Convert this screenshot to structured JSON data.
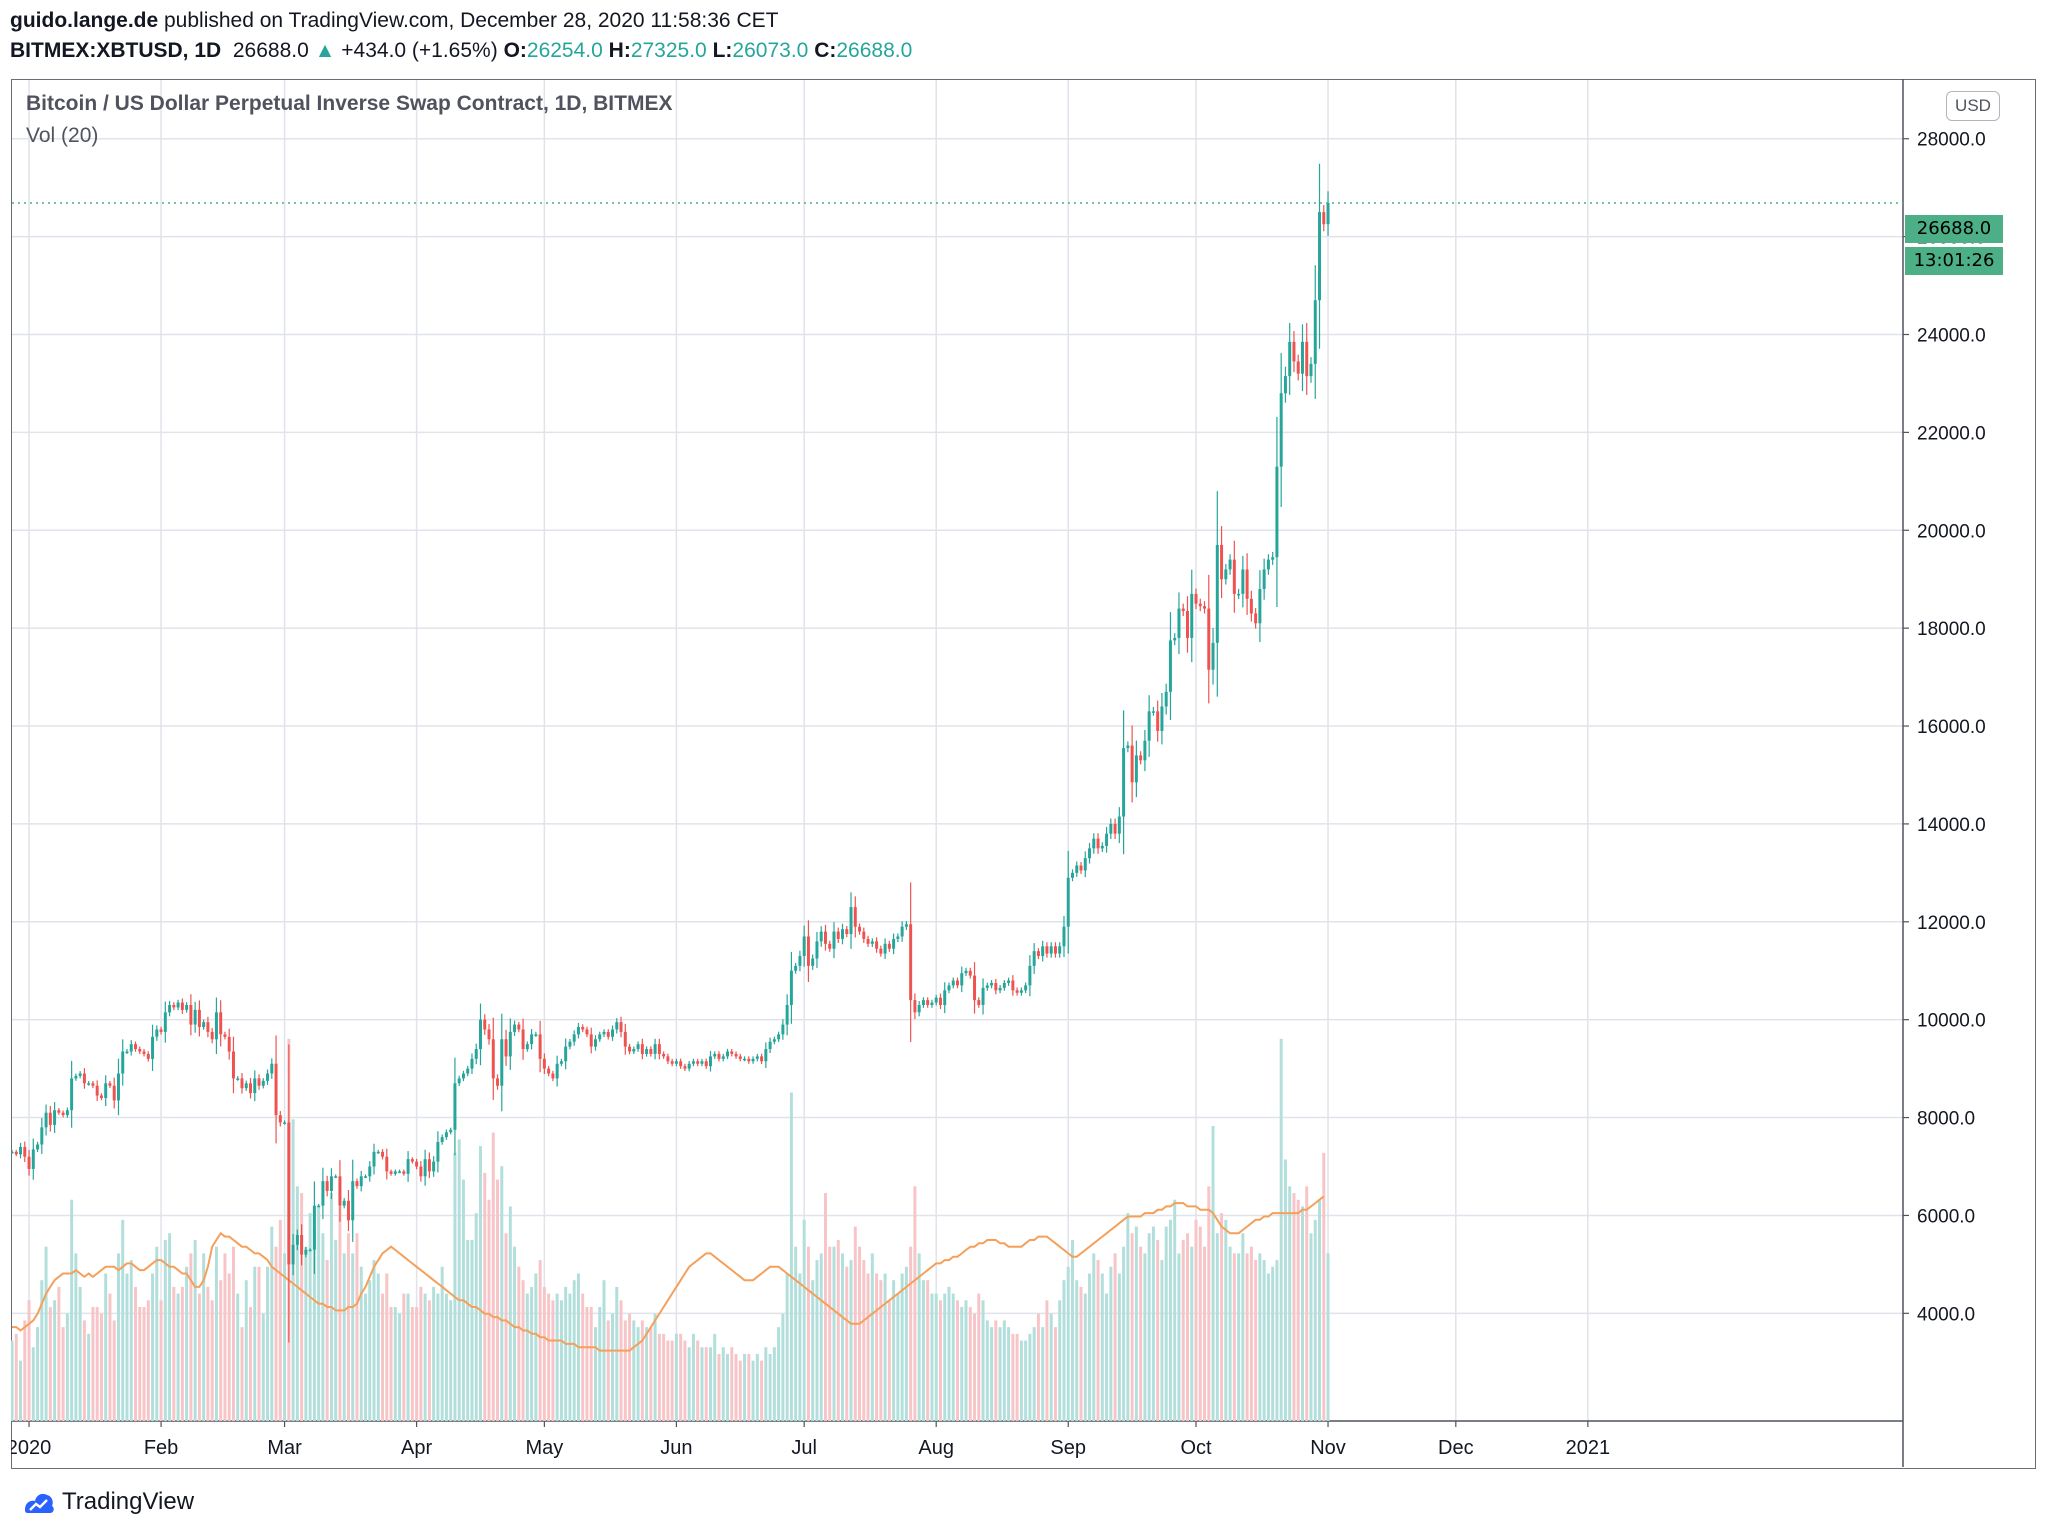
{
  "header": {
    "author": "guido.lange.de",
    "published": " published on TradingView.com, December 28, 2020 11:58:36 CET",
    "symbol": "BITMEX:XBTUSD, 1D",
    "last": "26688.0",
    "arrow": "▲",
    "change": "+434.0 (+1.65%)",
    "o_label": "O:",
    "o": "26254.0",
    "h_label": "H:",
    "h": "27325.0",
    "l_label": "L:",
    "l": "26073.0",
    "c_label": "C:",
    "c": "26688.0"
  },
  "pane": {
    "title": "Bitcoin / US Dollar Perpetual Inverse Swap Contract, 1D, BITMEX",
    "vol_title": "Vol (20)",
    "currency": "USD",
    "price_badge": "26688.0",
    "timer_badge": "13:01:26"
  },
  "footer": {
    "brand": "TradingView"
  },
  "colors": {
    "up": "#26a69a",
    "down": "#ef5350",
    "up_vol": "#b2dfdb",
    "down_vol": "#f7c5c7",
    "vol_ma": "#f5a05a",
    "grid": "#e0e3eb",
    "badge": "#4caf85"
  },
  "chart_data": {
    "type": "candlestick",
    "title": "Bitcoin / US Dollar Perpetual Inverse Swap Contract, 1D, BITMEX",
    "ylim": [
      1800,
      29200
    ],
    "y_ticks": [
      4000,
      6000,
      8000,
      10000,
      12000,
      14000,
      16000,
      18000,
      20000,
      22000,
      24000,
      26000,
      28000
    ],
    "y_tick_labels": [
      "4000.0",
      "6000.0",
      "8000.0",
      "10000.0",
      "12000.0",
      "14000.0",
      "16000.0",
      "18000.0",
      "20000.0",
      "22000.0",
      "24000.0",
      "26000.0",
      "28000.0"
    ],
    "x_range": [
      "2019-12-28",
      "2021-03-16"
    ],
    "x_ticks": [
      {
        "date": "2020-01-01",
        "label": "2020"
      },
      {
        "date": "2020-02-01",
        "label": "Feb"
      },
      {
        "date": "2020-03-01",
        "label": "Mar"
      },
      {
        "date": "2020-04-01",
        "label": "Apr"
      },
      {
        "date": "2020-05-01",
        "label": "May"
      },
      {
        "date": "2020-06-01",
        "label": "Jun"
      },
      {
        "date": "2020-07-01",
        "label": "Jul"
      },
      {
        "date": "2020-08-01",
        "label": "Aug"
      },
      {
        "date": "2020-09-01",
        "label": "Sep"
      },
      {
        "date": "2020-10-01",
        "label": "Oct"
      },
      {
        "date": "2020-11-01",
        "label": "Nov"
      },
      {
        "date": "2020-12-01",
        "label": "Dec"
      },
      {
        "date": "2021-01-01",
        "label": "2021"
      }
    ],
    "start_date": "2019-12-28",
    "close": [
      7300,
      7250,
      7400,
      7200,
      6950,
      7350,
      7450,
      7800,
      8100,
      7850,
      8150,
      8100,
      8050,
      8150,
      8800,
      8850,
      8900,
      8700,
      8700,
      8650,
      8450,
      8400,
      8700,
      8650,
      8350,
      8900,
      9350,
      9350,
      9500,
      9400,
      9350,
      9300,
      9200,
      9650,
      9800,
      9750,
      10150,
      10300,
      10250,
      10350,
      10200,
      10300,
      9900,
      10200,
      9850,
      9950,
      9750,
      9600,
      10150,
      9700,
      9650,
      9350,
      8800,
      8800,
      8600,
      8700,
      8500,
      8800,
      8650,
      8750,
      8900,
      9100,
      8050,
      7900,
      7900,
      5000,
      5400,
      5600,
      5200,
      5300,
      5300,
      6200,
      6200,
      6700,
      6500,
      6800,
      6800,
      6200,
      6300,
      5900,
      6700,
      6600,
      6800,
      6800,
      7000,
      7300,
      7300,
      7200,
      6900,
      6850,
      6900,
      6900,
      6850,
      7150,
      7100,
      7000,
      6800,
      7150,
      6900,
      7100,
      7500,
      7600,
      7700,
      7750,
      8700,
      8800,
      8900,
      9000,
      9200,
      9400,
      10000,
      9800,
      9600,
      8800,
      8650,
      9600,
      9250,
      9750,
      9900,
      9800,
      9400,
      9500,
      9700,
      9700,
      9200,
      9000,
      8900,
      8800,
      9100,
      9150,
      9450,
      9550,
      9700,
      9850,
      9800,
      9700,
      9450,
      9600,
      9700,
      9750,
      9650,
      9800,
      9950,
      9750,
      9450,
      9350,
      9400,
      9500,
      9300,
      9400,
      9300,
      9500,
      9300,
      9250,
      9150,
      9100,
      9150,
      9050,
      9000,
      9100,
      9150,
      9100,
      9150,
      9050,
      9250,
      9300,
      9200,
      9250,
      9350,
      9300,
      9250,
      9200,
      9200,
      9150,
      9200,
      9250,
      9150,
      9400,
      9550,
      9600,
      9700,
      9900,
      10300,
      11000,
      11100,
      11300,
      11700,
      11100,
      11250,
      11600,
      11800,
      11550,
      11450,
      11800,
      11650,
      11850,
      11750,
      12300,
      11900,
      11800,
      11650,
      11550,
      11600,
      11450,
      11350,
      11550,
      11450,
      11650,
      11700,
      11900,
      11950,
      10400,
      10150,
      10300,
      10400,
      10300,
      10350,
      10450,
      10300,
      10600,
      10700,
      10800,
      10700,
      10950,
      11000,
      10900,
      10400,
      10300,
      10650,
      10700,
      10750,
      10600,
      10650,
      10750,
      10800,
      10600,
      10550,
      10600,
      10700,
      11100,
      11400,
      11300,
      11500,
      11350,
      11500,
      11350,
      11500,
      11900,
      12900,
      13000,
      13150,
      13050,
      13300,
      13500,
      13700,
      13500,
      13550,
      13800,
      14000,
      13800,
      14150,
      15550,
      15600,
      14850,
      15400,
      15300,
      15700,
      16300,
      16300,
      15900,
      16400,
      16700,
      17750,
      17800,
      18400,
      18350,
      17800,
      18700,
      18500,
      18450,
      18400,
      17150,
      17700,
      19700,
      19000,
      19200,
      19400,
      18700,
      18700,
      19200,
      18600,
      18300,
      18100,
      18800,
      19200,
      19400,
      19450,
      21300,
      22800,
      23150,
      23850,
      23450,
      23200,
      23850,
      23150,
      23400,
      24700,
      26500,
      26254,
      26688
    ],
    "volume": [
      1200,
      1300,
      900,
      1500,
      1800,
      1100,
      1400,
      2100,
      2600,
      1700,
      1800,
      2000,
      1400,
      1600,
      3300,
      2500,
      2000,
      1500,
      1300,
      1700,
      1700,
      1600,
      2200,
      1900,
      1500,
      2500,
      3000,
      2200,
      2400,
      2000,
      1700,
      1700,
      1800,
      2200,
      2600,
      1800,
      2700,
      2800,
      2000,
      1900,
      2000,
      2300,
      2500,
      2700,
      1900,
      2500,
      2000,
      1800,
      2600,
      2100,
      2500,
      2200,
      2600,
      1900,
      1400,
      2100,
      1700,
      2300,
      2300,
      1600,
      2300,
      2900,
      2600,
      3000,
      2500,
      5700,
      4500,
      3500,
      3400,
      2600,
      3100,
      2900,
      3200,
      2800,
      2400,
      3400,
      2700,
      3200,
      2500,
      2800,
      2500,
      2800,
      2300,
      1900,
      2100,
      2400,
      2200,
      1900,
      2200,
      1700,
      1700,
      1600,
      1900,
      1900,
      1700,
      1700,
      2000,
      1900,
      1800,
      2000,
      1900,
      2300,
      1900,
      1800,
      4000,
      4200,
      3600,
      2700,
      2700,
      3100,
      4100,
      3700,
      3300,
      4300,
      3600,
      3800,
      2800,
      3200,
      2600,
      2300,
      2100,
      1900,
      2000,
      2200,
      2400,
      2000,
      1900,
      1800,
      1900,
      1800,
      2000,
      1900,
      2100,
      2200,
      1900,
      1700,
      1700,
      1400,
      1700,
      2100,
      1500,
      1600,
      2000,
      1800,
      1500,
      1600,
      1500,
      1400,
      1500,
      1400,
      1400,
      1600,
      1300,
      1300,
      1200,
      1200,
      1300,
      1300,
      1200,
      1100,
      1300,
      1200,
      1100,
      1100,
      1100,
      1300,
      1000,
      1100,
      1000,
      1100,
      1000,
      900,
      1000,
      1000,
      900,
      1000,
      900,
      1100,
      1000,
      1100,
      1400,
      1600,
      2200,
      4900,
      2600,
      2200,
      3000,
      2600,
      2100,
      2400,
      2500,
      3400,
      2600,
      2600,
      2700,
      2500,
      2300,
      2400,
      2900,
      2600,
      2400,
      2200,
      2500,
      2200,
      2100,
      2200,
      1800,
      2100,
      1900,
      2200,
      2300,
      2600,
      3500,
      2500,
      2100,
      2100,
      1900,
      1900,
      1800,
      1900,
      2000,
      1900,
      1800,
      1700,
      1800,
      1700,
      1600,
      1900,
      1800,
      1500,
      1400,
      1500,
      1400,
      1500,
      1400,
      1300,
      1300,
      1200,
      1200,
      1300,
      1400,
      1600,
      1400,
      1800,
      1600,
      1400,
      1800,
      2100,
      2300,
      2700,
      2100,
      2000,
      1900,
      2200,
      2500,
      2400,
      2200,
      1900,
      2300,
      2500,
      2200,
      2600,
      3100,
      2800,
      2900,
      2600,
      2500,
      2800,
      2900,
      2700,
      2400,
      2900,
      3000,
      3300,
      2500,
      2700,
      2800,
      2600,
      3000,
      2900,
      2600,
      3500,
      4400,
      2800,
      3100,
      3000,
      2600,
      2500,
      2500,
      2800,
      2500,
      2600,
      2400,
      2500,
      2400,
      2200,
      2300,
      2400,
      5700,
      3900,
      3500,
      3400,
      3300,
      3200,
      3500,
      2800,
      3000,
      3300,
      4000,
      2500
    ],
    "vol_ma_20": [
      1400,
      1400,
      1350,
      1400,
      1450,
      1500,
      1600,
      1750,
      1900,
      2000,
      2100,
      2150,
      2200,
      2200,
      2200,
      2250,
      2200,
      2150,
      2200,
      2150,
      2200,
      2250,
      2300,
      2300,
      2300,
      2250,
      2300,
      2350,
      2350,
      2300,
      2250,
      2250,
      2300,
      2350,
      2400,
      2400,
      2350,
      2300,
      2300,
      2250,
      2200,
      2200,
      2100,
      2000,
      2000,
      2100,
      2300,
      2600,
      2700,
      2800,
      2750,
      2750,
      2700,
      2650,
      2600,
      2600,
      2550,
      2500,
      2500,
      2450,
      2400,
      2300,
      2250,
      2200,
      2150,
      2100,
      2050,
      2000,
      1950,
      1900,
      1850,
      1800,
      1750,
      1750,
      1700,
      1700,
      1650,
      1650,
      1650,
      1700,
      1700,
      1750,
      1900,
      2000,
      2150,
      2300,
      2400,
      2500,
      2550,
      2600,
      2550,
      2500,
      2450,
      2400,
      2350,
      2300,
      2250,
      2200,
      2150,
      2100,
      2050,
      2000,
      1950,
      1900,
      1850,
      1800,
      1800,
      1750,
      1700,
      1700,
      1650,
      1600,
      1600,
      1550,
      1550,
      1500,
      1500,
      1450,
      1400,
      1400,
      1350,
      1350,
      1300,
      1300,
      1250,
      1250,
      1200,
      1200,
      1200,
      1200,
      1150,
      1150,
      1150,
      1100,
      1100,
      1100,
      1100,
      1100,
      1050,
      1050,
      1050,
      1050,
      1050,
      1050,
      1050,
      1050,
      1100,
      1150,
      1200,
      1300,
      1400,
      1500,
      1600,
      1700,
      1800,
      1900,
      2000,
      2100,
      2200,
      2300,
      2350,
      2400,
      2450,
      2500,
      2500,
      2450,
      2400,
      2350,
      2300,
      2250,
      2200,
      2150,
      2100,
      2100,
      2100,
      2150,
      2200,
      2250,
      2300,
      2300,
      2300,
      2250,
      2200,
      2150,
      2100,
      2050,
      2000,
      1950,
      1900,
      1850,
      1800,
      1750,
      1700,
      1650,
      1600,
      1550,
      1500,
      1450,
      1450,
      1450,
      1500,
      1550,
      1600,
      1650,
      1700,
      1750,
      1800,
      1850,
      1900,
      1950,
      2000,
      2050,
      2100,
      2150,
      2200,
      2250,
      2300,
      2350,
      2350,
      2400,
      2400,
      2450,
      2450,
      2500,
      2550,
      2600,
      2600,
      2650,
      2650,
      2700,
      2700,
      2700,
      2650,
      2650,
      2600,
      2600,
      2600,
      2600,
      2650,
      2700,
      2700,
      2750,
      2750,
      2750,
      2700,
      2650,
      2600,
      2550,
      2500,
      2450,
      2450,
      2500,
      2550,
      2600,
      2650,
      2700,
      2750,
      2800,
      2850,
      2900,
      2950,
      3000,
      3050,
      3050,
      3050,
      3050,
      3100,
      3100,
      3100,
      3150,
      3150,
      3200,
      3200,
      3250,
      3250,
      3250,
      3200,
      3200,
      3200,
      3150,
      3150,
      3150,
      3100,
      3000,
      2900,
      2850,
      2800,
      2800,
      2800,
      2850,
      2900,
      2950,
      3000,
      3000,
      3050,
      3050,
      3100,
      3100,
      3100,
      3100,
      3100,
      3100,
      3100,
      3150,
      3150,
      3200,
      3250,
      3300,
      3350
    ],
    "vol_scale_max": 20000,
    "series": [
      {
        "name": "BITMEX:XBTUSD",
        "kind": "ohlc"
      },
      {
        "name": "Vol (20)",
        "kind": "volume"
      }
    ],
    "last_price": 26688.0
  }
}
